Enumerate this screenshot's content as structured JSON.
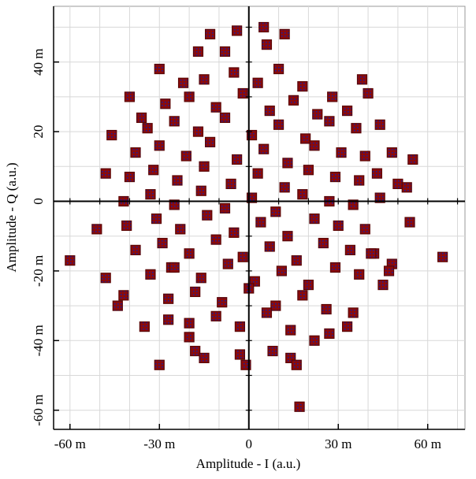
{
  "chart_data": {
    "type": "scatter",
    "xlabel": "Amplitude - I (a.u.)",
    "ylabel": "Amplitude - Q (a.u.)",
    "xlim": [
      -65.5,
      72.5
    ],
    "ylim": [
      -65.5,
      56
    ],
    "xticks": [
      {
        "value": -60,
        "label": "-60 m"
      },
      {
        "value": -30,
        "label": "-30 m"
      },
      0,
      {
        "value": 30,
        "label": "30 m"
      },
      {
        "value": 60,
        "label": "60 m"
      }
    ],
    "yticks": [
      {
        "value": -60,
        "label": "-60 m"
      },
      {
        "value": -40,
        "label": "-40 m"
      },
      {
        "value": -20,
        "label": "-20 m"
      },
      0,
      20,
      {
        "value": 40,
        "label": "40 m"
      }
    ],
    "minor_xticks": [
      -60,
      -50,
      -40,
      -30,
      -20,
      -10,
      0,
      10,
      20,
      30,
      40,
      50,
      60,
      70
    ],
    "minor_yticks": [
      -60,
      -50,
      -40,
      -30,
      -20,
      -10,
      0,
      10,
      20,
      30,
      40,
      50
    ],
    "grid": true,
    "series": [
      {
        "color": "#8b0a0a",
        "inner_color": "#1c1c9c",
        "x": [
          -60,
          65,
          17,
          -30,
          -13,
          -4,
          5,
          12,
          -1,
          -48,
          -51,
          55,
          54,
          48,
          -46,
          -40,
          -30,
          -3,
          8,
          45,
          42,
          -42,
          -35,
          -27,
          -18,
          -15,
          14,
          16,
          22,
          33,
          35,
          27,
          28,
          38,
          -22,
          -36,
          -48,
          -44,
          44,
          33,
          -8,
          6,
          -17,
          -20,
          40,
          48,
          47,
          50,
          53,
          -26,
          -15,
          -5,
          3,
          10,
          18,
          -28,
          -20,
          -11,
          -2,
          7,
          15,
          23,
          -34,
          -25,
          -17,
          -8,
          1,
          10,
          19,
          27,
          36,
          -38,
          -30,
          -21,
          -13,
          -4,
          5,
          13,
          22,
          31,
          39,
          -40,
          -32,
          -24,
          -15,
          -6,
          3,
          12,
          20,
          29,
          37,
          43,
          -42,
          -33,
          -25,
          -16,
          -8,
          1,
          9,
          18,
          27,
          35,
          44,
          -41,
          -31,
          -23,
          -14,
          -5,
          4,
          13,
          22,
          30,
          39,
          -38,
          -29,
          -20,
          -11,
          -2,
          7,
          16,
          25,
          34,
          41,
          -33,
          -25,
          -16,
          -7,
          2,
          11,
          20,
          29,
          37,
          -27,
          -18,
          -9,
          0,
          9,
          18,
          26,
          -20,
          -11,
          -3,
          6,
          14
        ],
        "values": [
          -17,
          -16,
          -59,
          -47,
          48,
          49,
          50,
          48,
          -47,
          8,
          -8,
          12,
          -6,
          14,
          19,
          30,
          38,
          -44,
          -43,
          -24,
          -15,
          -27,
          -36,
          -34,
          -43,
          -45,
          -45,
          -47,
          -40,
          -36,
          -32,
          -38,
          30,
          35,
          34,
          24,
          -22,
          -30,
          22,
          26,
          43,
          45,
          43,
          -39,
          31,
          -18,
          -20,
          5,
          4,
          -19,
          35,
          37,
          34,
          38,
          33,
          28,
          30,
          27,
          31,
          26,
          29,
          25,
          21,
          23,
          20,
          24,
          19,
          22,
          18,
          23,
          21,
          14,
          16,
          13,
          17,
          12,
          15,
          11,
          16,
          14,
          13,
          7,
          9,
          6,
          10,
          5,
          8,
          4,
          9,
          7,
          6,
          8,
          0,
          2,
          -1,
          3,
          -2,
          1,
          -3,
          2,
          0,
          -1,
          1,
          -7,
          -5,
          -8,
          -4,
          -9,
          -6,
          -10,
          -5,
          -7,
          -8,
          -14,
          -12,
          -15,
          -11,
          -16,
          -13,
          -17,
          -12,
          -14,
          -15,
          -21,
          -19,
          -22,
          -18,
          -23,
          -20,
          -24,
          -19,
          -21,
          -28,
          -26,
          -29,
          -25,
          -30,
          -27,
          -31,
          -35,
          -33,
          -36,
          -32,
          -37
        ]
      }
    ]
  }
}
